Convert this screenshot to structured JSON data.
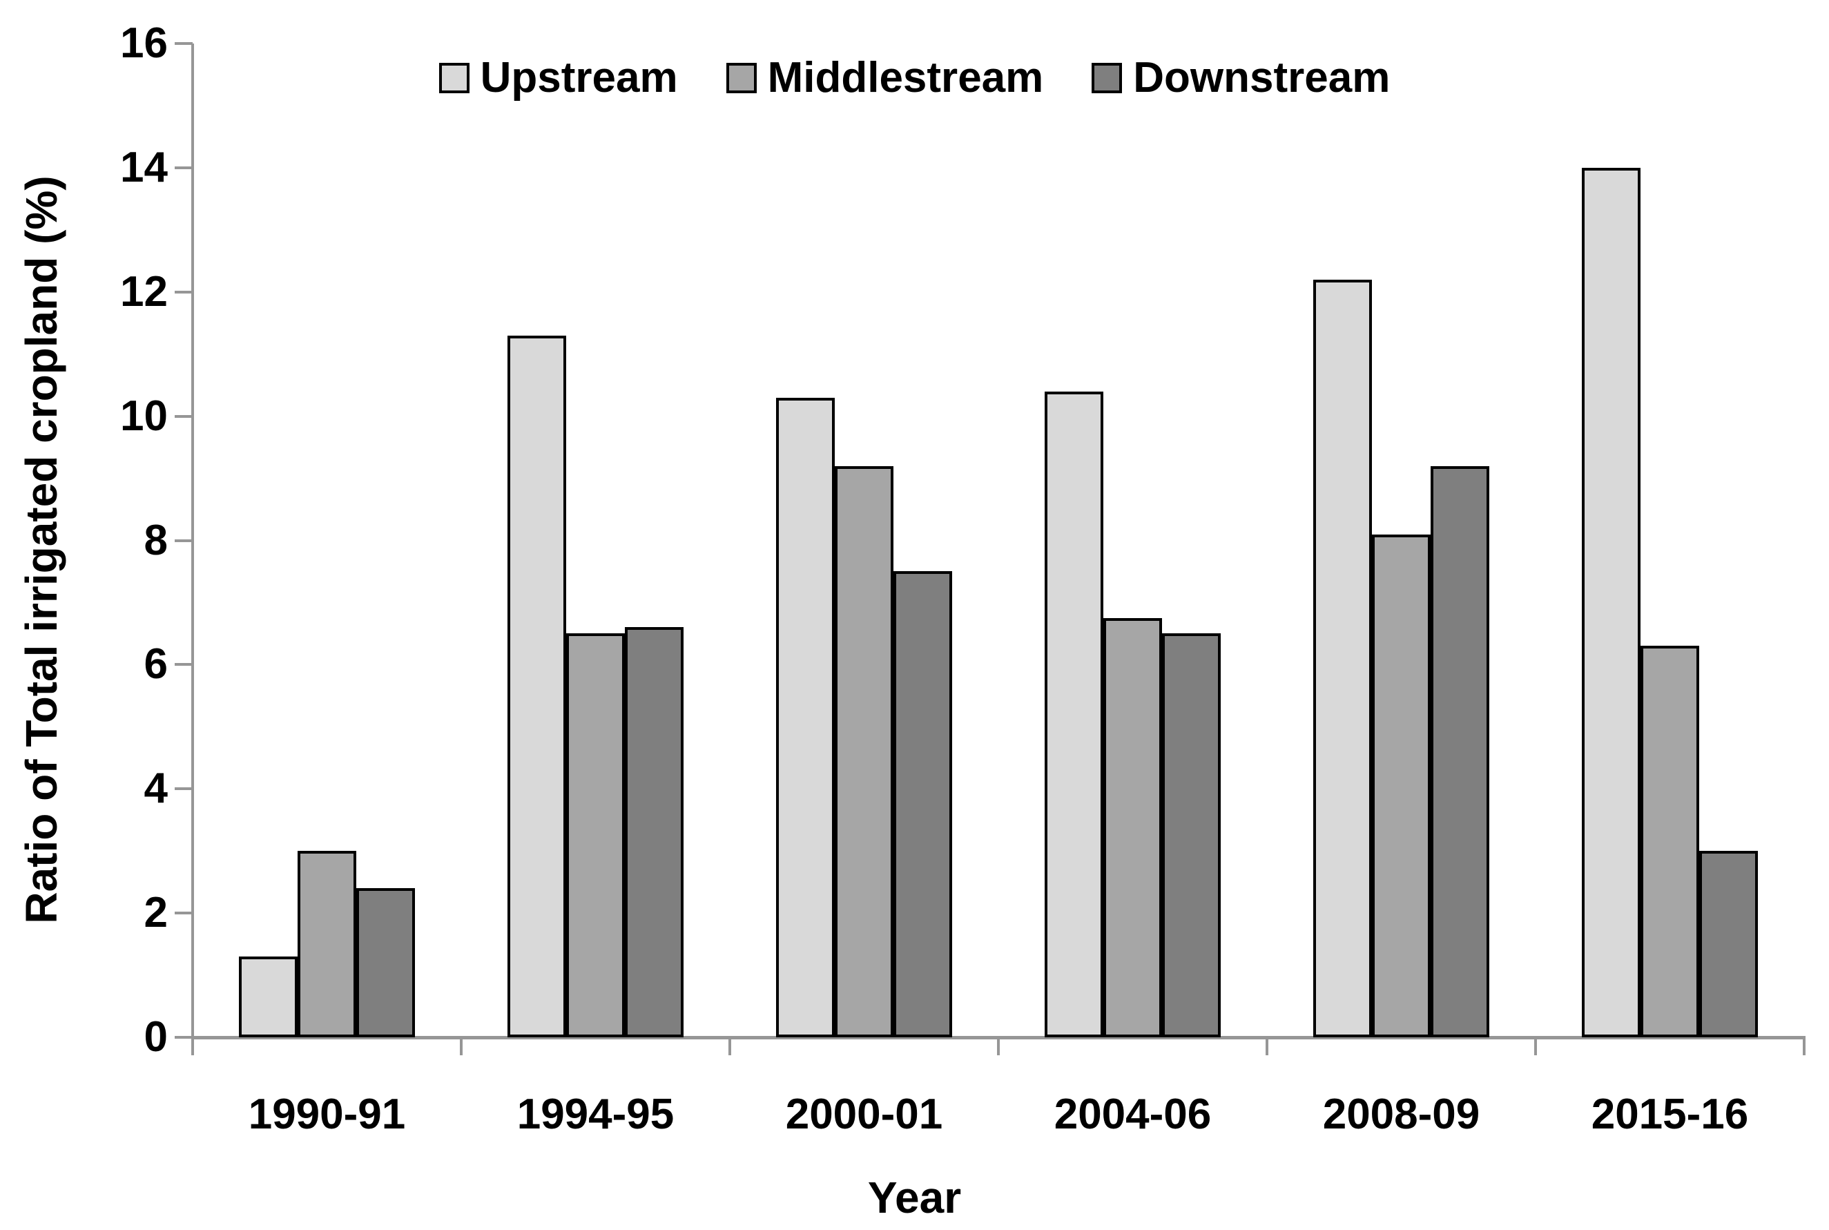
{
  "chart_data": {
    "type": "bar",
    "title": "",
    "xlabel": "Year",
    "ylabel": "Ratio of Total irrigated cropland (%)",
    "categories": [
      "1990-91",
      "1994-95",
      "2000-01",
      "2004-06",
      "2008-09",
      "2015-16"
    ],
    "series": [
      {
        "name": "Upstream",
        "color": "#d9d9d9",
        "values": [
          1.3,
          11.3,
          10.3,
          10.4,
          12.2,
          14.0
        ]
      },
      {
        "name": "Middlestream",
        "color": "#a6a6a6",
        "values": [
          3.0,
          6.5,
          9.2,
          6.75,
          8.1,
          6.3
        ]
      },
      {
        "name": "Downstream",
        "color": "#7f7f7f",
        "values": [
          2.4,
          6.6,
          7.5,
          6.5,
          9.2,
          3.0
        ]
      }
    ],
    "ylim": [
      0,
      16
    ],
    "yticks": [
      0,
      2,
      4,
      6,
      8,
      10,
      12,
      14,
      16
    ],
    "grid": false,
    "legend_position": "top-center",
    "colors": {
      "axis": "#969696",
      "bar_border": "#000000",
      "text": "#000000",
      "background": "#ffffff"
    }
  }
}
